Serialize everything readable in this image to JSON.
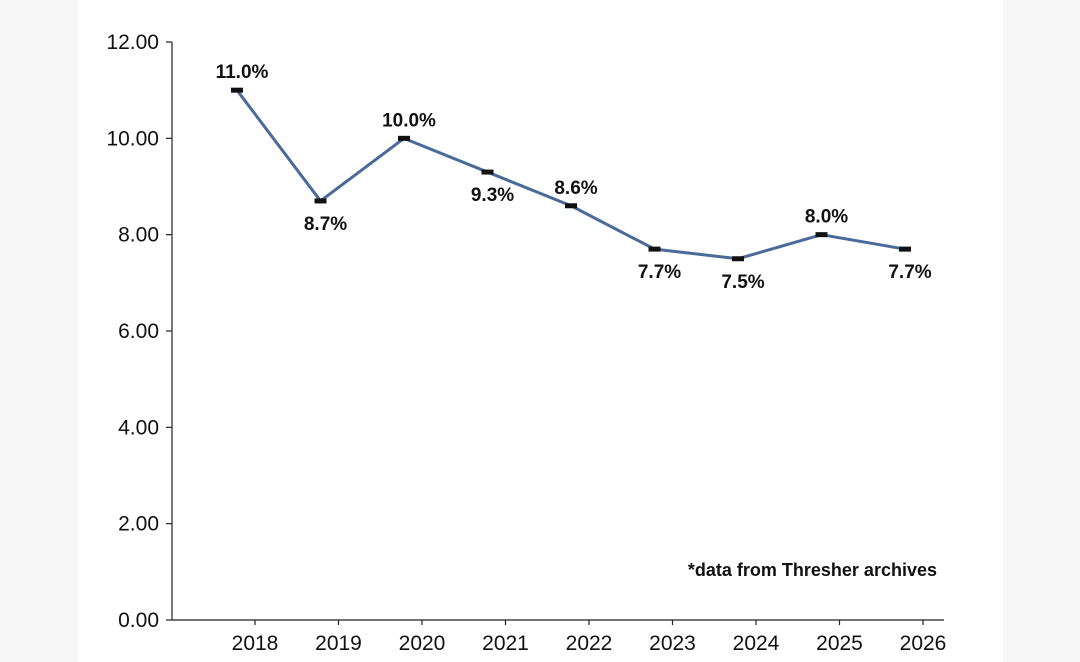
{
  "chart_data": {
    "type": "line",
    "title": "",
    "xlabel": "",
    "ylabel": "",
    "x": [
      "2018",
      "2019",
      "2020",
      "2021",
      "2022",
      "2023",
      "2024",
      "2025",
      "2026"
    ],
    "series": [
      {
        "values": [
          11.0,
          8.7,
          10.0,
          9.3,
          8.6,
          7.7,
          7.5,
          8.0,
          7.7
        ],
        "labels": [
          "11.0%",
          "8.7%",
          "10.0%",
          "9.3%",
          "8.6%",
          "7.7%",
          "7.5%",
          "8.0%",
          "7.7%"
        ],
        "label_positions": [
          "above",
          "below",
          "above",
          "below",
          "above",
          "below",
          "below",
          "above",
          "below"
        ]
      }
    ],
    "ylim": [
      0,
      12
    ],
    "yticks": [
      "0.00",
      "2.00",
      "4.00",
      "6.00",
      "8.00",
      "10.00",
      "12.00"
    ],
    "grid": false,
    "line_color": "#4a6a9a",
    "annotation": "*data from Thresher archives"
  }
}
